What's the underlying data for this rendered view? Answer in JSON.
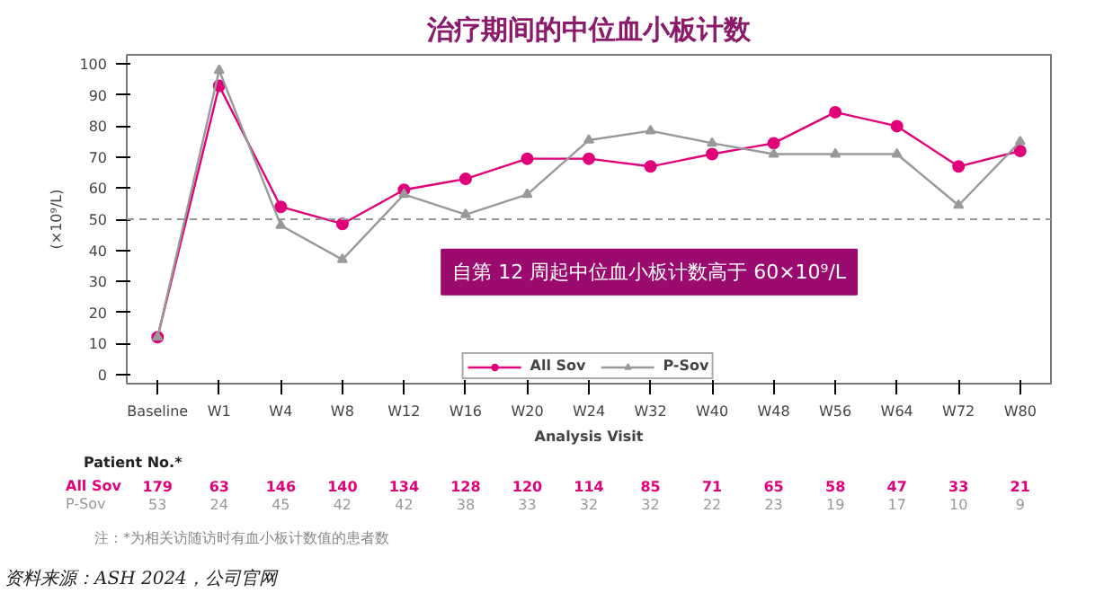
{
  "chart_data": {
    "type": "line",
    "title": "治疗期间的中位血小板计数",
    "xlabel": "Analysis Visit",
    "ylabel": "(×10⁹/L)",
    "categories": [
      "Baseline",
      "W1",
      "W4",
      "W8",
      "W12",
      "W16",
      "W20",
      "W24",
      "W32",
      "W40",
      "W48",
      "W56",
      "W64",
      "W72",
      "W80"
    ],
    "series": [
      {
        "name": "All Sov",
        "color": "#e0007a",
        "marker": "circle",
        "values": [
          12,
          93,
          54,
          48.5,
          59.5,
          63,
          69.5,
          69.5,
          67,
          71,
          74.5,
          84.5,
          80,
          67,
          72
        ]
      },
      {
        "name": "P-Sov",
        "color": "#999999",
        "marker": "triangle",
        "values": [
          12,
          98,
          48,
          37,
          58,
          51.5,
          58,
          75.5,
          78.5,
          74.5,
          71,
          71,
          71,
          54.5,
          75
        ]
      }
    ],
    "ylim": [
      -3,
      103
    ],
    "yticks": [
      0,
      10,
      20,
      30,
      40,
      50,
      60,
      70,
      80,
      90,
      100
    ],
    "grid": false,
    "legend": "bottom",
    "ref_lines": [
      {
        "axis": "y",
        "value": 50,
        "color": "#999999",
        "line_style": "dashed"
      }
    ],
    "annotations": [
      "自第 12 周起中位血小板计数高于 60×10⁹/L",
      "Patient No.*",
      "All Sov",
      "179",
      "63",
      "146",
      "140",
      "134",
      "128",
      "120",
      "114",
      "85",
      "71",
      "65",
      "58",
      "47",
      "33",
      "21",
      "P-Sov",
      "53",
      "24",
      "45",
      "42",
      "42",
      "38",
      "33",
      "32",
      "32",
      "22",
      "23",
      "19",
      "17",
      "10",
      "9",
      "注：*为相关访随访时有血小板计数值的患者数",
      "资料来源：ASH 2024，公司官网"
    ]
  }
}
